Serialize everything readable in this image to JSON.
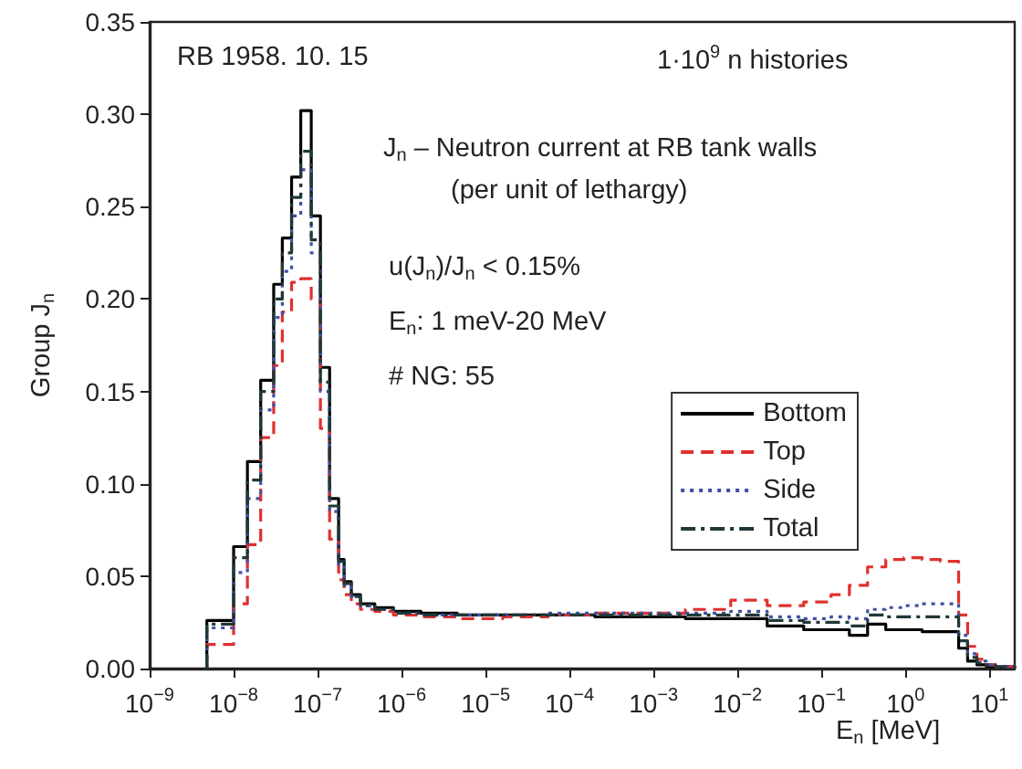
{
  "chart_data": {
    "type": "histogram",
    "xlabel": "E$_{n}$ [MeV]",
    "ylabel": "Group J$_{n}$",
    "annotations": [
      "RB 1958. 10. 15",
      "1·10$^{9}$ n histories",
      "J$_{n}$ – Neutron current at RB tank walls",
      "(per unit of lethargy)",
      "u(J$_{n}$)/J$_{n}$ < 0.15%",
      "E$_{n}$: 1 meV-20 MeV",
      "# NG: 55"
    ],
    "log": "x",
    "bins": [
      4.8e-09,
      1e-08,
      1.46e-08,
      2.1e-08,
      3e-08,
      3.8e-08,
      4.9e-08,
      6.3e-08,
      8.4e-08,
      1.08e-07,
      1.39e-07,
      1.78e-07,
      2.07e-07,
      2.52e-07,
      3.24e-07,
      4.8e-07,
      8e-07,
      1.7e-06,
      4.6e-06,
      1.6e-05,
      5.6e-05,
      0.0002,
      0.00068,
      0.0024,
      0.0083,
      0.0226,
      0.0615,
      0.13,
      0.215,
      0.354,
      0.583,
      0.96,
      1.58,
      2.61,
      4.3,
      5.5,
      7.1,
      9.2,
      11.8,
      15.1,
      20
    ],
    "series": [
      {
        "name": "Bottom",
        "color": "#000000",
        "line_style": "solid",
        "values": [
          0.026,
          0.066,
          0.112,
          0.156,
          0.208,
          0.233,
          0.266,
          0.302,
          0.245,
          0.163,
          0.092,
          0.059,
          0.047,
          0.04,
          0.035,
          0.033,
          0.031,
          0.03,
          0.029,
          0.029,
          0.029,
          0.028,
          0.028,
          0.027,
          0.027,
          0.023,
          0.021,
          0.021,
          0.018,
          0.024,
          0.021,
          0.021,
          0.02,
          0.02,
          0.011,
          0.004,
          0.002,
          0.001,
          0.001,
          0.001
        ]
      },
      {
        "name": "Top",
        "color": "#e03030",
        "line_style": "dashed",
        "values": [
          0.013,
          0.035,
          0.067,
          0.125,
          0.164,
          0.193,
          0.209,
          0.211,
          0.2,
          0.13,
          0.07,
          0.048,
          0.04,
          0.035,
          0.032,
          0.031,
          0.029,
          0.028,
          0.027,
          0.028,
          0.029,
          0.03,
          0.03,
          0.032,
          0.037,
          0.034,
          0.036,
          0.04,
          0.045,
          0.055,
          0.059,
          0.06,
          0.059,
          0.058,
          0.029,
          0.012,
          0.005,
          0.002,
          0.001,
          0.001
        ]
      },
      {
        "name": "Side",
        "color": "#4050a8",
        "line_style": "dotted",
        "values": [
          0.022,
          0.052,
          0.092,
          0.14,
          0.19,
          0.215,
          0.245,
          0.27,
          0.225,
          0.15,
          0.085,
          0.056,
          0.045,
          0.039,
          0.034,
          0.032,
          0.03,
          0.029,
          0.029,
          0.029,
          0.03,
          0.03,
          0.03,
          0.03,
          0.031,
          0.028,
          0.027,
          0.028,
          0.027,
          0.032,
          0.033,
          0.034,
          0.035,
          0.035,
          0.018,
          0.008,
          0.004,
          0.002,
          0.001,
          0.001
        ]
      },
      {
        "name": "Total",
        "color": "#203838",
        "line_style": "dashdot",
        "values": [
          0.024,
          0.06,
          0.102,
          0.15,
          0.2,
          0.225,
          0.255,
          0.28,
          0.232,
          0.155,
          0.088,
          0.058,
          0.046,
          0.039,
          0.034,
          0.032,
          0.03,
          0.029,
          0.029,
          0.029,
          0.029,
          0.029,
          0.029,
          0.029,
          0.029,
          0.026,
          0.025,
          0.025,
          0.023,
          0.029,
          0.028,
          0.028,
          0.028,
          0.028,
          0.015,
          0.006,
          0.003,
          0.002,
          0.001,
          0.001
        ]
      }
    ],
    "xlim": [
      1e-09,
      20
    ],
    "xticks": [
      {
        "value": 1e-09,
        "label": "10$^{−9}$"
      },
      {
        "value": 1e-08,
        "label": "10$^{−8}$"
      },
      {
        "value": 1e-07,
        "label": "10$^{−7}$"
      },
      {
        "value": 1e-06,
        "label": "10$^{−6}$"
      },
      {
        "value": 1e-05,
        "label": "10$^{−5}$"
      },
      {
        "value": 0.0001,
        "label": "10$^{−4}$"
      },
      {
        "value": 0.001,
        "label": "10$^{−3}$"
      },
      {
        "value": 0.01,
        "label": "10$^{−2}$"
      },
      {
        "value": 0.1,
        "label": "10$^{−1}$"
      },
      {
        "value": 1,
        "label": "10$^{0}$"
      },
      {
        "value": 10,
        "label": "10$^{1}$"
      }
    ],
    "ylim": [
      0,
      0.35
    ],
    "yticks": [
      {
        "value": 0,
        "label": "0.00"
      },
      {
        "value": 0.05,
        "label": "0.05"
      },
      {
        "value": 0.1,
        "label": "0.10"
      },
      {
        "value": 0.15,
        "label": "0.15"
      },
      {
        "value": 0.2,
        "label": "0.20"
      },
      {
        "value": 0.25,
        "label": "0.25"
      },
      {
        "value": 0.3,
        "label": "0.30"
      },
      {
        "value": 0.35,
        "label": "0.35"
      }
    ],
    "grid": false,
    "legend": "right"
  }
}
